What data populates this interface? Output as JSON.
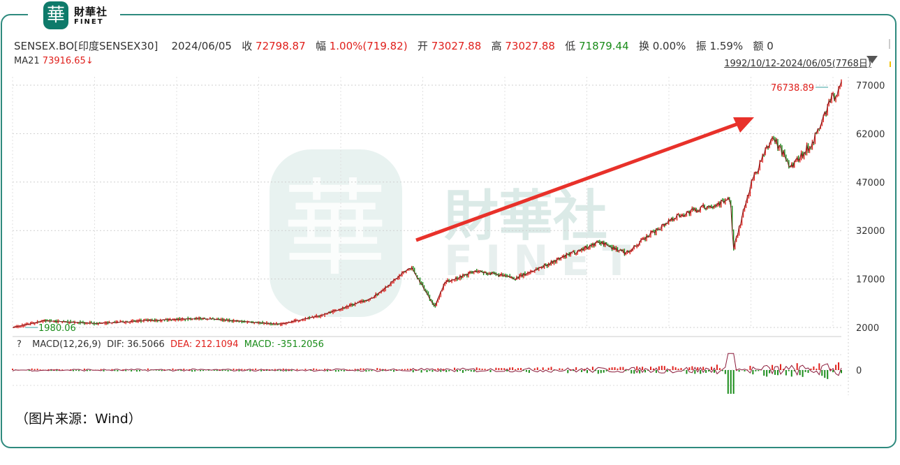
{
  "logo": {
    "mark": "華",
    "cn": "財華社",
    "en": "FINET"
  },
  "watermark": {
    "mark": "華",
    "cn": "財華社",
    "en": "FINET"
  },
  "header": {
    "symbol": "SENSEX.BO[印度SENSEX30]",
    "date": "2024/06/05",
    "close_label": "收",
    "close_value": "72798.87",
    "change_label": "幅",
    "change_value": "1.00%(719.82)",
    "open_label": "开",
    "open_value": "73027.88",
    "high_label": "高",
    "high_value": "73027.88",
    "low_label": "低",
    "low_value": "71879.44",
    "turnover_label": "换",
    "turnover_value": "0.00%",
    "amplitude_label": "振",
    "amplitude_value": "1.59%",
    "amount_label": "额",
    "amount_value": "0"
  },
  "ma": {
    "label": "MA21",
    "value": "73916.65↓"
  },
  "range": {
    "text": "1992/10/12-2024/06/05(7768日)"
  },
  "macd": {
    "help": "?",
    "label": "MACD(12,26,9)",
    "dif_label": "DIF:",
    "dif_value": "36.5066",
    "dea_label": "DEA:",
    "dea_value": "212.1094",
    "macd_label": "MACD:",
    "macd_value": "-351.2056"
  },
  "caption": "（图片来源：Wind）",
  "colors": {
    "up": "#e0201c",
    "down": "#1a8c1a",
    "frame": "#2e8a7e",
    "arrow": "#e8312a"
  },
  "chart_data": {
    "type": "line",
    "title": "",
    "xlabel": "",
    "ylabel": "",
    "x_range": [
      "1992/10/12",
      "2024/06/05"
    ],
    "ylim": [
      2000,
      77000
    ],
    "y_ticks": [
      77000,
      62000,
      47000,
      32000,
      17000,
      2000
    ],
    "annotations": {
      "max_label": "76738.89",
      "min_label": "1980.06"
    },
    "series": [
      {
        "x": [
          1992.78,
          1994.0,
          1996.0,
          1998.0,
          2000.0,
          2003.0,
          2004.5,
          2006.5,
          2008.0,
          2008.9,
          2009.3,
          2010.5,
          2012.0,
          2014.3,
          2015.2,
          2016.2,
          2018.0,
          2019.5,
          2020.2,
          2020.3,
          2021.0,
          2021.8,
          2022.5,
          2023.2,
          2023.5,
          2024.0,
          2024.43
        ],
        "y": [
          1980,
          4100,
          3200,
          4200,
          4800,
          3000,
          5600,
          11000,
          20800,
          8500,
          16000,
          19500,
          17200,
          25500,
          28500,
          25000,
          36000,
          40000,
          41500,
          26000,
          47000,
          61000,
          52000,
          58000,
          62000,
          72000,
          76739
        ]
      }
    ]
  },
  "macd_data": {
    "zero_label": "0"
  }
}
